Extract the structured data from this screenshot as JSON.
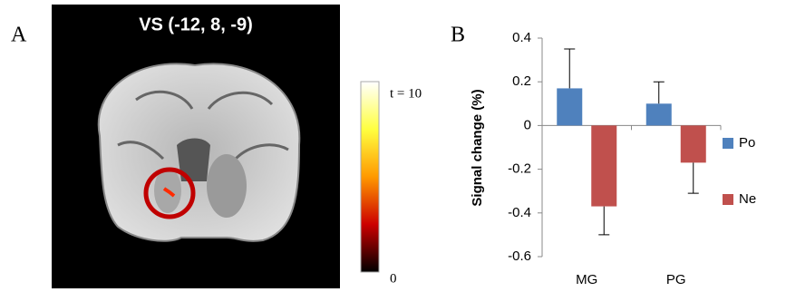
{
  "panel_a": {
    "label": "A",
    "title": "VS (-12, 8, -9)",
    "colorbar": {
      "max_label": "t = 10",
      "min_label": "0"
    }
  },
  "chart_data": {
    "type": "bar",
    "panel_label": "B",
    "y_label": "Signal change  (%)",
    "categories": [
      "MG",
      "PG"
    ],
    "series": [
      {
        "name": "Po",
        "color": "#4f81bd",
        "values": [
          0.17,
          0.1
        ],
        "errors": [
          0.18,
          0.1
        ]
      },
      {
        "name": "Ne",
        "color": "#c0504d",
        "values": [
          -0.37,
          -0.17
        ],
        "errors": [
          0.13,
          0.14
        ]
      }
    ],
    "ylim": [
      -0.6,
      0.4
    ],
    "yticks": [
      -0.6,
      -0.4,
      -0.2,
      0,
      0.2,
      0.4
    ],
    "grid": false,
    "legend": "right"
  }
}
